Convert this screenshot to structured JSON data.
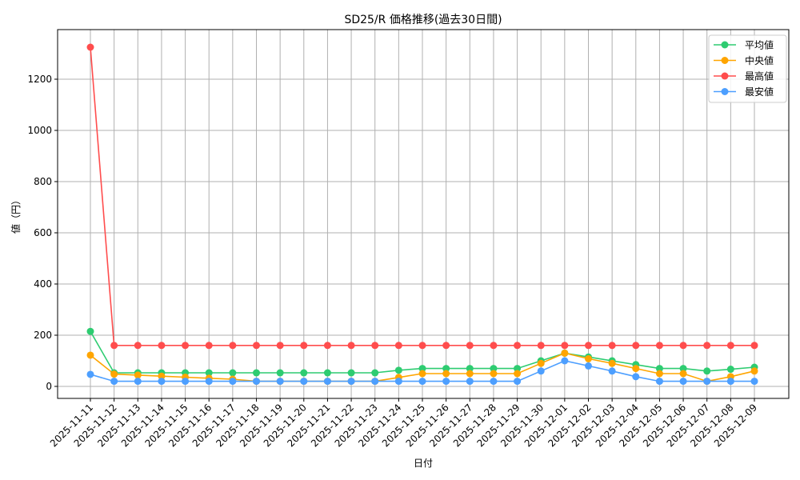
{
  "chart_data": {
    "type": "line",
    "title": "SD25/R 価格推移(過去30日間)",
    "xlabel": "日付",
    "ylabel": "値（円）",
    "ylim": [
      -45,
      1380
    ],
    "yticks": [
      0,
      200,
      400,
      600,
      800,
      1000,
      1200
    ],
    "grid": true,
    "legend_position": "upper right",
    "categories": [
      "2025-11-11",
      "2025-11-12",
      "2025-11-13",
      "2025-11-14",
      "2025-11-15",
      "2025-11-16",
      "2025-11-17",
      "2025-11-18",
      "2025-11-19",
      "2025-11-20",
      "2025-11-21",
      "2025-11-22",
      "2025-11-23",
      "2025-11-24",
      "2025-11-25",
      "2025-11-26",
      "2025-11-27",
      "2025-11-28",
      "2025-11-29",
      "2025-11-30",
      "2025-12-01",
      "2025-12-02",
      "2025-12-03",
      "2025-12-04",
      "2025-12-05",
      "2025-12-06",
      "2025-12-07",
      "2025-12-08",
      "2025-12-09"
    ],
    "series": [
      {
        "name": "平均値",
        "color": "#2ecc71",
        "values": [
          215,
          53,
          53,
          53,
          53,
          53,
          53,
          53,
          53,
          53,
          53,
          53,
          53,
          63,
          70,
          70,
          70,
          70,
          70,
          100,
          130,
          115,
          100,
          85,
          70,
          70,
          60,
          67,
          75
        ]
      },
      {
        "name": "中央値",
        "color": "#ffa500",
        "values": [
          122,
          48,
          44,
          40,
          36,
          32,
          28,
          20,
          20,
          20,
          20,
          20,
          20,
          35,
          50,
          50,
          50,
          50,
          50,
          90,
          130,
          108,
          90,
          70,
          50,
          50,
          20,
          38,
          60
        ]
      },
      {
        "name": "最高値",
        "color": "#ff4d4d",
        "values": [
          1325,
          160,
          160,
          160,
          160,
          160,
          160,
          160,
          160,
          160,
          160,
          160,
          160,
          160,
          160,
          160,
          160,
          160,
          160,
          160,
          160,
          160,
          160,
          160,
          160,
          160,
          160,
          160,
          160
        ]
      },
      {
        "name": "最安値",
        "color": "#4d9fff",
        "values": [
          47,
          20,
          20,
          20,
          20,
          20,
          20,
          20,
          20,
          20,
          20,
          20,
          20,
          20,
          20,
          20,
          20,
          20,
          20,
          60,
          100,
          80,
          60,
          38,
          20,
          20,
          20,
          20,
          20
        ]
      }
    ]
  }
}
